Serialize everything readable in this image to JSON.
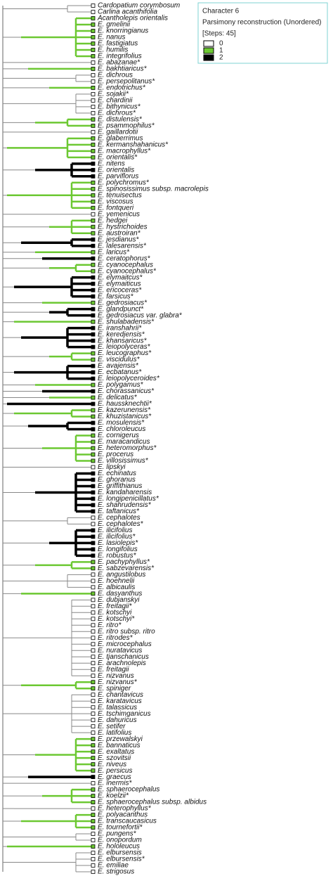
{
  "legend": {
    "title": "Character 6",
    "subtitle": "Parsimony reconstruction (Unordered)",
    "steps": "[Steps: 45]",
    "states": [
      {
        "label": "0",
        "color": "#ffffff"
      },
      {
        "label": "1",
        "color": "#6cc832"
      },
      {
        "label": "2",
        "color": "#000000"
      }
    ]
  },
  "taxa": [
    {
      "label": "Cardopatium corymbosum",
      "state": 0
    },
    {
      "label": "Carlina acanthifolia",
      "state": 0
    },
    {
      "label": "Acantholepis orientalis",
      "state": 1
    },
    {
      "label": "E. gmelinii",
      "state": 1
    },
    {
      "label": "E. knorringianus",
      "state": 1
    },
    {
      "label": "E. nanus",
      "state": 1
    },
    {
      "label": "E. fastigiatus",
      "state": 1
    },
    {
      "label": "E. humilis",
      "state": 1
    },
    {
      "label": "E. integrifolius",
      "state": 1
    },
    {
      "label": "E. abazanae*",
      "state": 0
    },
    {
      "label": "E. bakhtiaricus*",
      "state": 1
    },
    {
      "label": "E. dichrous",
      "state": 0
    },
    {
      "label": "E. persepolitanus*",
      "state": 0
    },
    {
      "label": "E. endotrichus*",
      "state": 1
    },
    {
      "label": "E. sojakii*",
      "state": 0
    },
    {
      "label": "E. chardinii",
      "state": 0
    },
    {
      "label": "E. bithynicus*",
      "state": 0
    },
    {
      "label": "E. dichrous*",
      "state": 0
    },
    {
      "label": "E. distulensis*",
      "state": 1
    },
    {
      "label": "E. psammophilus*",
      "state": 1
    },
    {
      "label": "E. gaillardotii",
      "state": 0
    },
    {
      "label": "E. glaberrimus",
      "state": 1
    },
    {
      "label": "E. kermanshahanicus*",
      "state": 1
    },
    {
      "label": "E. macrophyllus*",
      "state": 1
    },
    {
      "label": "E. orientalis*",
      "state": 1
    },
    {
      "label": "E. nitens",
      "state": 2
    },
    {
      "label": "E. orientalis",
      "state": 2
    },
    {
      "label": "E. parviflorus",
      "state": 2
    },
    {
      "label": "E. polychromus*",
      "state": 1
    },
    {
      "label": "E. spinosissimus subsp. macrolepis",
      "state": 1
    },
    {
      "label": "E. tenuisectus",
      "state": 1
    },
    {
      "label": "E. viscosus",
      "state": 1
    },
    {
      "label": "E. fontqueri",
      "state": 1
    },
    {
      "label": "E. yemenicus",
      "state": 0
    },
    {
      "label": "E. hedgei",
      "state": 1
    },
    {
      "label": "E. hystrichoides",
      "state": 1
    },
    {
      "label": "E. austroiran*",
      "state": 1
    },
    {
      "label": "E. jesdianus*",
      "state": 2
    },
    {
      "label": "E. lalesarensis*",
      "state": 2
    },
    {
      "label": "E. laricus*",
      "state": 1
    },
    {
      "label": "E. ceratophorus*",
      "state": 2
    },
    {
      "label": "E. cyanocephalus",
      "state": 1
    },
    {
      "label": "E. cyanocephalus*",
      "state": 1
    },
    {
      "label": "E. elymaitcus*",
      "state": 2
    },
    {
      "label": "E. elymaiticus",
      "state": 2
    },
    {
      "label": "E. ericoceras*",
      "state": 2
    },
    {
      "label": "E. farsicus*",
      "state": 2
    },
    {
      "label": "E. gedrosiacus*",
      "state": 1
    },
    {
      "label": "E. glandpunct*",
      "state": 2
    },
    {
      "label": "E. gedrosiacus var. glabra*",
      "state": 2
    },
    {
      "label": "E. shulabadensis*",
      "state": 1
    },
    {
      "label": "E. iranshahrii*",
      "state": 2
    },
    {
      "label": "E. keredjensis*",
      "state": 2
    },
    {
      "label": "E. khansaricus*",
      "state": 2
    },
    {
      "label": "E. leiopolyceras*",
      "state": 2
    },
    {
      "label": "E. leucographus*",
      "state": 1
    },
    {
      "label": "E. viscidulus*",
      "state": 1
    },
    {
      "label": "E. avajensis*",
      "state": 2
    },
    {
      "label": "E. ecbatanus*",
      "state": 2
    },
    {
      "label": "E. leiopolyceroides*",
      "state": 2
    },
    {
      "label": "E. polygamus*",
      "state": 1
    },
    {
      "label": "E. chorassanicus*",
      "state": 2
    },
    {
      "label": "E. delicatus*",
      "state": 1
    },
    {
      "label": "E. haussknechtii*",
      "state": 2
    },
    {
      "label": "E. kazerunensis*",
      "state": 1
    },
    {
      "label": "E. khuzistanicus*",
      "state": 1
    },
    {
      "label": "E. mosulensis*",
      "state": 2
    },
    {
      "label": "E. chloroleucus",
      "state": 2
    },
    {
      "label": "E. cornigerus",
      "state": 1
    },
    {
      "label": "E. maracandicus",
      "state": 1
    },
    {
      "label": "E. heteromorphus*",
      "state": 1
    },
    {
      "label": "E. procerus",
      "state": 1
    },
    {
      "label": "E. villosissimus*",
      "state": 1
    },
    {
      "label": "E. lipskyi",
      "state": 0
    },
    {
      "label": "E. echinatus",
      "state": 2
    },
    {
      "label": "E. ghoranus",
      "state": 2
    },
    {
      "label": "E. griffithianus",
      "state": 2
    },
    {
      "label": "E. kandaharensis",
      "state": 2
    },
    {
      "label": "E. longipenicillatus*",
      "state": 2
    },
    {
      "label": "E. shahrudensis*",
      "state": 2
    },
    {
      "label": "E. taftanicus*",
      "state": 2
    },
    {
      "label": "E. cephalotes",
      "state": 0
    },
    {
      "label": "E. cephalotes*",
      "state": 0
    },
    {
      "label": "E. ilicifolius",
      "state": 2
    },
    {
      "label": "E. ilicifolius*",
      "state": 2
    },
    {
      "label": "E. lasiolepis*",
      "state": 2
    },
    {
      "label": "E. longifolius",
      "state": 2
    },
    {
      "label": "E. robustus*",
      "state": 2
    },
    {
      "label": "E. pachyphyllus*",
      "state": 1
    },
    {
      "label": "E. sabzevarensis*",
      "state": 1
    },
    {
      "label": "E. angustilobus",
      "state": 0
    },
    {
      "label": "E. hoehnelii",
      "state": 0
    },
    {
      "label": "E. albicaulis",
      "state": 0
    },
    {
      "label": "E. dasyanthus",
      "state": 1
    },
    {
      "label": "E. dubjanskyi",
      "state": 0
    },
    {
      "label": "E. freitagii*",
      "state": 0
    },
    {
      "label": "E. kotschyi",
      "state": 0
    },
    {
      "label": "E. kotschyi*",
      "state": 0
    },
    {
      "label": "E. ritro*",
      "state": 0
    },
    {
      "label": "E. ritro subsp. ritro",
      "state": 0
    },
    {
      "label": "E. ritrodes*",
      "state": 0
    },
    {
      "label": "E. microcephalus",
      "state": 0
    },
    {
      "label": "E. nuratavicus",
      "state": 0
    },
    {
      "label": "E. tjanschanicus",
      "state": 0
    },
    {
      "label": "E. arachnolepis",
      "state": 0
    },
    {
      "label": "E. freitagii",
      "state": 0
    },
    {
      "label": "E. nizvanus",
      "state": 0
    },
    {
      "label": "E. nizvanus*",
      "state": 1
    },
    {
      "label": "E. spiniger",
      "state": 1
    },
    {
      "label": "E. chantavicus",
      "state": 0
    },
    {
      "label": "E. karatavicus",
      "state": 0
    },
    {
      "label": "E. talassicus",
      "state": 0
    },
    {
      "label": "E. tschimganicus",
      "state": 0
    },
    {
      "label": "E. dahuricus",
      "state": 0
    },
    {
      "label": "E. setifer",
      "state": 0
    },
    {
      "label": "E. latifolius",
      "state": 0
    },
    {
      "label": "E. przewalskyi",
      "state": 1
    },
    {
      "label": "E. bannaticus",
      "state": 1
    },
    {
      "label": "E. exaltatus",
      "state": 1
    },
    {
      "label": "E. szovitsii",
      "state": 1
    },
    {
      "label": "E. niveus",
      "state": 1
    },
    {
      "label": "E. persicus",
      "state": 1
    },
    {
      "label": "E. graecus",
      "state": 2
    },
    {
      "label": "E. inermis*",
      "state": 0
    },
    {
      "label": "E. sphaerocephalus",
      "state": 1
    },
    {
      "label": "E. koelzii*",
      "state": 1
    },
    {
      "label": "E. sphaerocephalus subsp. albidus",
      "state": 1
    },
    {
      "label": "E. heterophyllus*",
      "state": 0
    },
    {
      "label": "E. polyacanthus",
      "state": 1
    },
    {
      "label": "E. transcaucasicus",
      "state": 1
    },
    {
      "label": "E. tournefortii*",
      "state": 1
    },
    {
      "label": "E. pungens*",
      "state": 0
    },
    {
      "label": "E. onopordum",
      "state": 0
    },
    {
      "label": "E. hololeucus",
      "state": 1
    },
    {
      "label": "E. elbursensis",
      "state": 0
    },
    {
      "label": "E. elbursensis*",
      "state": 0
    },
    {
      "label": "E. emiliae",
      "state": 0
    },
    {
      "label": "E. strigosus",
      "state": 0
    }
  ]
}
